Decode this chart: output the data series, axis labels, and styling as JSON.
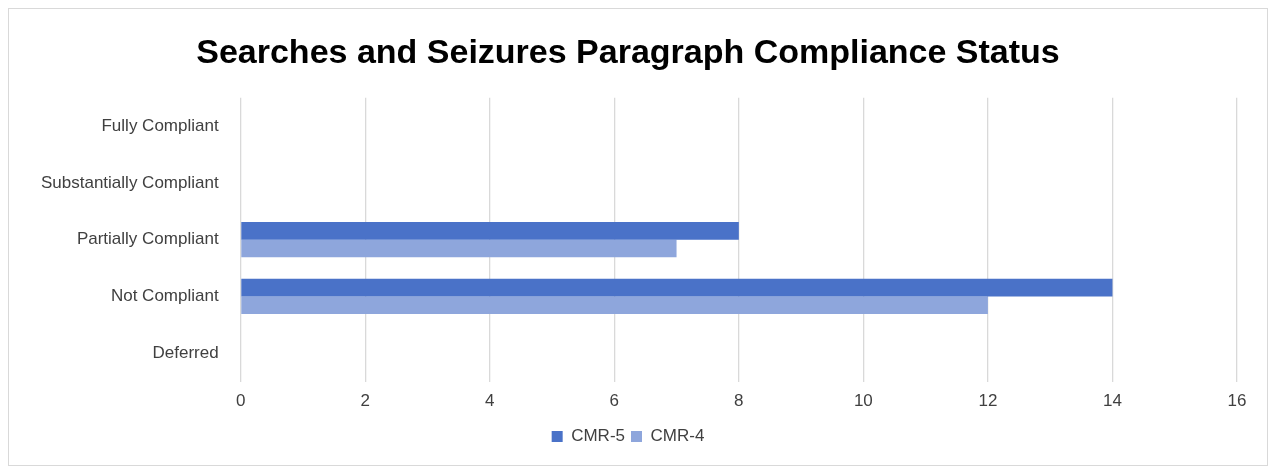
{
  "chart_data": {
    "type": "bar",
    "orientation": "horizontal",
    "title": "Searches and Seizures Paragraph Compliance Status",
    "categories": [
      "Fully Compliant",
      "Substantially Compliant",
      "Partially Compliant",
      "Not Compliant",
      "Deferred"
    ],
    "series": [
      {
        "name": "CMR-5",
        "color": "#4a72c8",
        "values": [
          0,
          0,
          8,
          14,
          0
        ]
      },
      {
        "name": "CMR-4",
        "color": "#8ea6dc",
        "values": [
          0,
          0,
          7,
          12,
          0
        ]
      }
    ],
    "xlim": [
      0,
      16
    ],
    "xticks": [
      0,
      2,
      4,
      6,
      8,
      10,
      12,
      14,
      16
    ],
    "grid": "x",
    "legend": "bottom"
  }
}
